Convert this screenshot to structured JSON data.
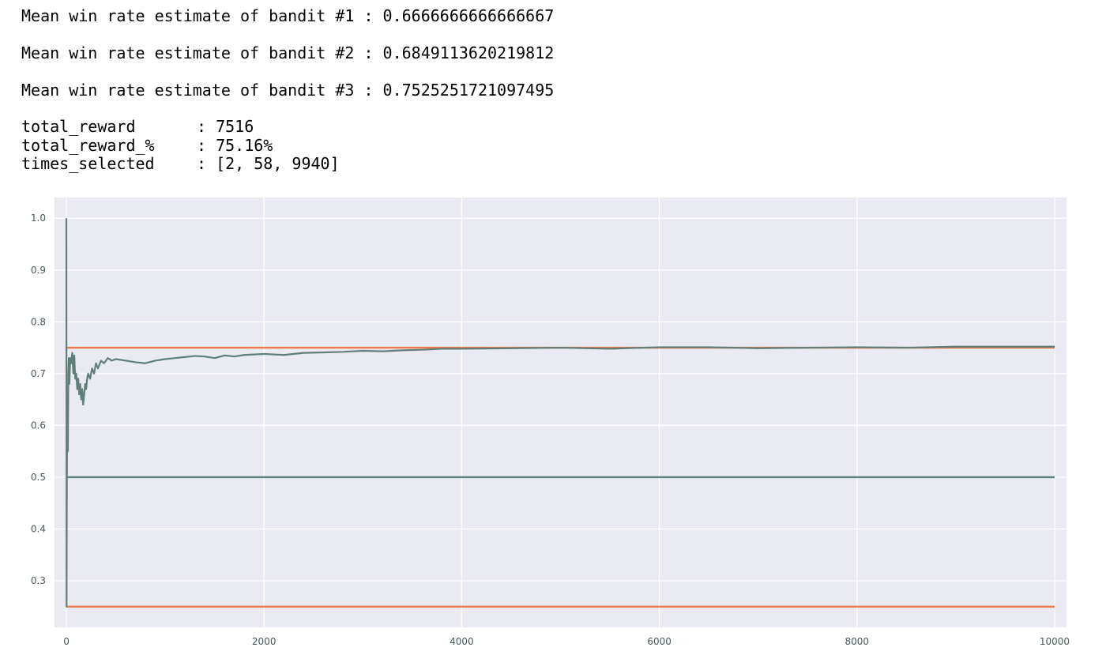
{
  "output": {
    "estimates": [
      {
        "text": "Mean win rate estimate of bandit #1 : 0.6666666666666667"
      },
      {
        "text": "Mean win rate estimate of bandit #2 : 0.6849113620219812"
      },
      {
        "text": "Mean win rate estimate of bandit #3 : 0.7525251721097495"
      }
    ],
    "stats": [
      {
        "label": "total_reward",
        "value": ": 7516"
      },
      {
        "label": "total_reward_%",
        "value": ": 75.16%"
      },
      {
        "label": "times_selected",
        "value": ": [2, 58, 9940]"
      }
    ]
  },
  "chart_data": {
    "type": "line",
    "title": "",
    "xlabel": "",
    "ylabel": "",
    "xlim": [
      -120,
      10120
    ],
    "ylim": [
      0.21,
      1.04
    ],
    "xticks": [
      0,
      2000,
      4000,
      6000,
      8000,
      10000
    ],
    "yticks": [
      0.3,
      0.4,
      0.5,
      0.6,
      0.7,
      0.8,
      0.9,
      1.0
    ],
    "ytick_labels": [
      "0.3",
      "0.4",
      "0.5",
      "0.6",
      "0.7",
      "0.8",
      "0.9",
      "1.0"
    ],
    "grid": true,
    "background": "#eaeaf2",
    "series": [
      {
        "color": "#5f7f78",
        "x": [
          0,
          2,
          5,
          8,
          12,
          15,
          20,
          25,
          30,
          40,
          50,
          60,
          70,
          80,
          90,
          100,
          110,
          120,
          130,
          140,
          150,
          160,
          170,
          180,
          190,
          200,
          210,
          220,
          240,
          260,
          280,
          300,
          320,
          350,
          380,
          420,
          460,
          500,
          600,
          700,
          800,
          900,
          1000,
          1100,
          1200,
          1300,
          1400,
          1500,
          1600,
          1700,
          1800,
          1900,
          2000,
          2200,
          2400,
          2600,
          2800,
          3000,
          3200,
          3400,
          3600,
          3800,
          4000,
          4500,
          5000,
          5500,
          6000,
          6500,
          7000,
          7500,
          8000,
          8500,
          9000,
          9500,
          10000
        ],
        "y": [
          1.0,
          0.25,
          0.5,
          0.58,
          0.66,
          0.55,
          0.7,
          0.73,
          0.68,
          0.73,
          0.72,
          0.74,
          0.7,
          0.735,
          0.69,
          0.7,
          0.67,
          0.69,
          0.66,
          0.68,
          0.65,
          0.67,
          0.64,
          0.66,
          0.68,
          0.67,
          0.69,
          0.7,
          0.69,
          0.71,
          0.7,
          0.72,
          0.71,
          0.725,
          0.72,
          0.73,
          0.725,
          0.728,
          0.725,
          0.722,
          0.72,
          0.725,
          0.728,
          0.73,
          0.732,
          0.734,
          0.733,
          0.73,
          0.735,
          0.733,
          0.736,
          0.737,
          0.738,
          0.736,
          0.74,
          0.741,
          0.742,
          0.744,
          0.743,
          0.745,
          0.746,
          0.748,
          0.748,
          0.749,
          0.75,
          0.748,
          0.751,
          0.751,
          0.749,
          0.75,
          0.751,
          0.75,
          0.752,
          0.752,
          0.752
        ]
      },
      {
        "color": "#5f7f78",
        "x": [
          0,
          10000
        ],
        "y": [
          0.5,
          0.5
        ]
      },
      {
        "color": "#ef7a4e",
        "x": [
          0,
          10000
        ],
        "y": [
          0.75,
          0.75
        ]
      },
      {
        "color": "#ef7a4e",
        "x": [
          0,
          10000
        ],
        "y": [
          0.25,
          0.25
        ]
      }
    ]
  }
}
